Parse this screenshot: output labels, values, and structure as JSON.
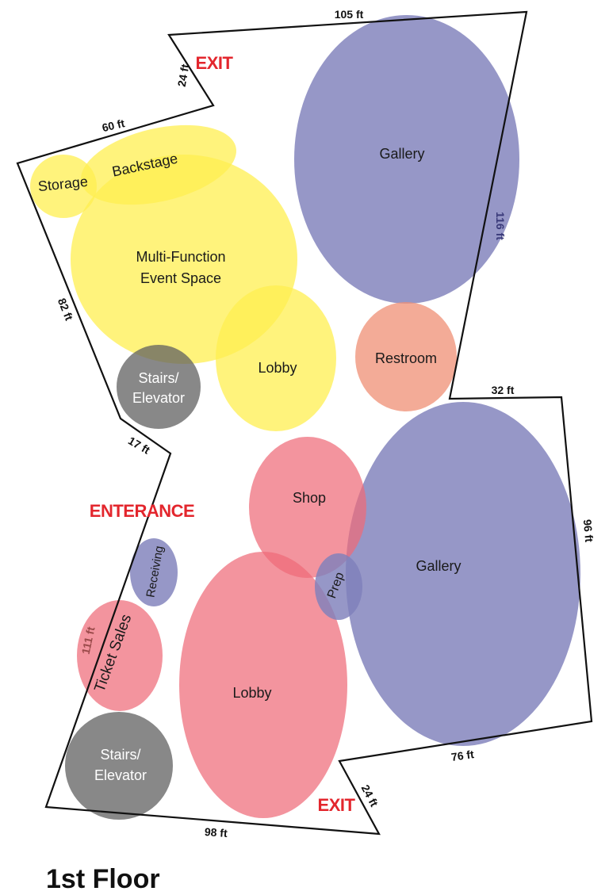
{
  "title": "1st Floor",
  "colors": {
    "gallery": "#7f80bb",
    "event": "#ffef50",
    "retail": "#ef6b78",
    "restroom": "#ef8f74",
    "stairs": "#606060",
    "marker": "#e3262d",
    "outline": "#111111"
  },
  "markers": {
    "exit_top": "EXIT",
    "exit_bottom": "EXIT",
    "entrance": "ENTERANCE"
  },
  "dimensions": {
    "top": "105 ft",
    "top_left_short": "24 ft",
    "upper_left": "60 ft",
    "left_upper": "82 ft",
    "mid_left_short": "17 ft",
    "right_upper": "116 ft",
    "notch": "32 ft",
    "right_lower": "96 ft",
    "bottom_right": "76 ft",
    "bottom_short": "24 ft",
    "bottom": "98 ft",
    "left_lower": "111 ft"
  },
  "rooms": {
    "gallery_upper": "Gallery",
    "restroom": "Restroom",
    "storage": "Storage",
    "backstage": "Backstage",
    "event_space_line1": "Multi-Function",
    "event_space_line2": "Event Space",
    "lobby_upper": "Lobby",
    "stairs_upper_line1": "Stairs/",
    "stairs_upper_line2": "Elevator",
    "shop": "Shop",
    "prep": "Prep",
    "gallery_lower": "Gallery",
    "receiving": "Receiving",
    "ticket_sales": "Ticket Sales",
    "lobby_lower": "Lobby",
    "stairs_lower_line1": "Stairs/",
    "stairs_lower_line2": "Elevator"
  }
}
